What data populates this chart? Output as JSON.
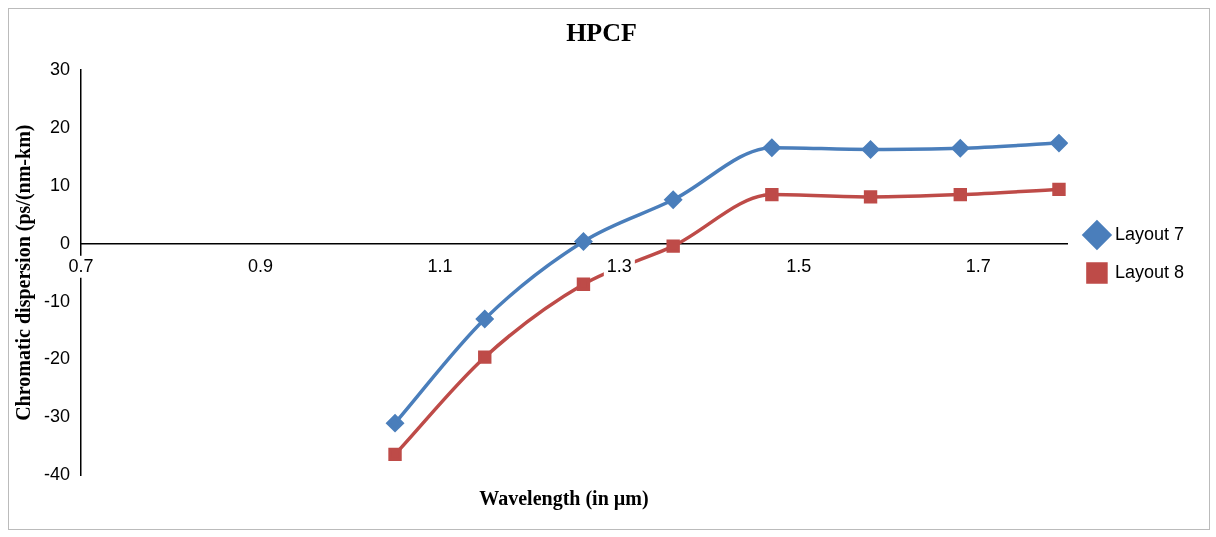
{
  "chart_data": {
    "type": "line",
    "title": "HPCF",
    "xlabel": "Wavelength (in µm)",
    "ylabel": "Chromatic dispersion (ps/(nm-km)",
    "x": [
      1.05,
      1.15,
      1.26,
      1.36,
      1.47,
      1.58,
      1.68,
      1.79
    ],
    "xlim": [
      0.7,
      1.8
    ],
    "xticks": [
      0.7,
      0.9,
      1.1,
      1.3,
      1.5,
      1.7
    ],
    "ylim": [
      -40,
      30
    ],
    "yticks": [
      -40,
      -30,
      -20,
      -10,
      0,
      10,
      20,
      30
    ],
    "grid": false,
    "legend": "right",
    "series": [
      {
        "name": "Layout 7",
        "color": "#4a7ebb",
        "marker": "diamond",
        "values": [
          -31,
          -13,
          0.4,
          7.6,
          16.6,
          16.3,
          16.5,
          17.4
        ]
      },
      {
        "name": "Layout 8",
        "color": "#be4b48",
        "marker": "square",
        "values": [
          -36.4,
          -19.6,
          -7,
          -0.4,
          8.5,
          8.1,
          8.5,
          9.4
        ]
      }
    ]
  }
}
